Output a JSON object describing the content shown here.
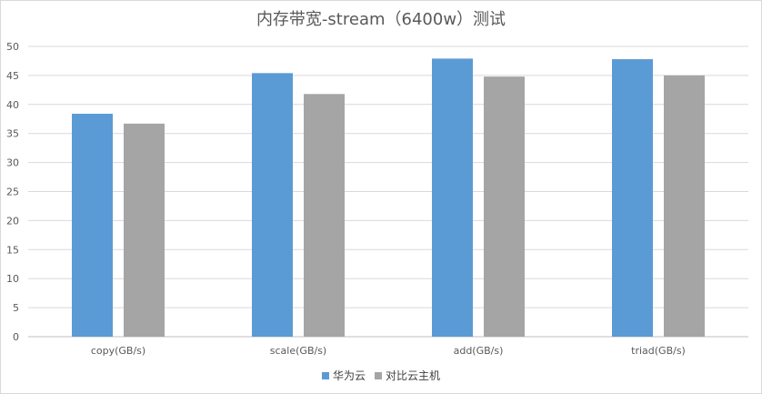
{
  "chart_data": {
    "type": "bar",
    "title": "内存带宽-stream（6400w）测试",
    "categories": [
      "copy(GB/s)",
      "scale(GB/s)",
      "add(GB/s)",
      "triad(GB/s)"
    ],
    "series": [
      {
        "name": "华为云",
        "color": "#5b9bd5",
        "values": [
          38.4,
          45.4,
          47.9,
          47.8
        ]
      },
      {
        "name": "对比云主机",
        "color": "#a5a5a5",
        "values": [
          36.7,
          41.8,
          44.8,
          45.0
        ]
      }
    ],
    "ylim": [
      0,
      50
    ],
    "yticks": [
      0,
      5,
      10,
      15,
      20,
      25,
      30,
      35,
      40,
      45,
      50
    ],
    "grid": true,
    "legend": "bottom"
  }
}
